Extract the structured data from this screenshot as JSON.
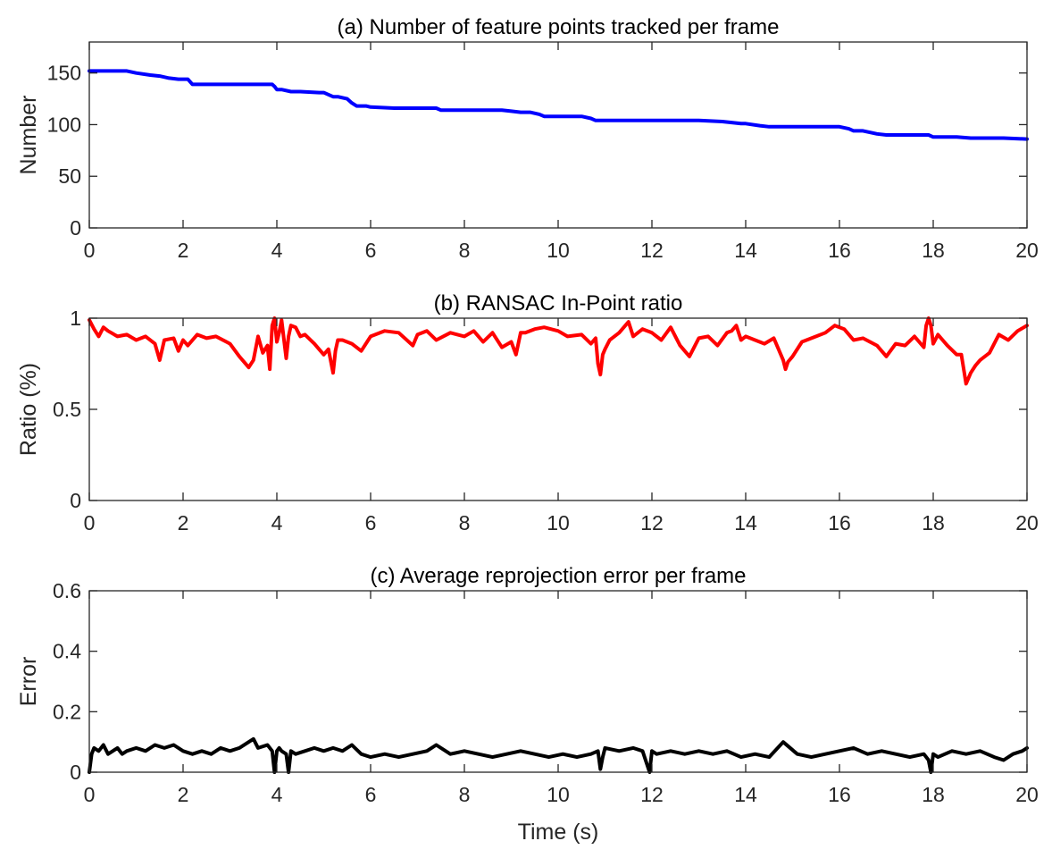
{
  "chart_data": [
    {
      "type": "line",
      "title": "(a) Number of feature points tracked per frame",
      "xlabel": "",
      "ylabel": "Number",
      "xlim": [
        0,
        20
      ],
      "ylim": [
        0,
        180
      ],
      "xticks": [
        0,
        2,
        4,
        6,
        8,
        10,
        12,
        14,
        16,
        18,
        20
      ],
      "xtick_labels": [
        "0",
        "2",
        "4",
        "6",
        "8",
        "10",
        "12",
        "14",
        "16",
        "18",
        "20"
      ],
      "yticks": [
        0,
        50,
        100,
        150
      ],
      "ytick_labels": [
        "0",
        "50",
        "100",
        "150"
      ],
      "grid": false,
      "color": "#0000ff",
      "series": [
        {
          "x": [
            0,
            0.8,
            1.0,
            1.3,
            1.5,
            1.7,
            1.9,
            2.1,
            2.2,
            2.5,
            3.0,
            3.5,
            3.9,
            3.95,
            4.0,
            4.1,
            4.3,
            4.5,
            4.9,
            5.0,
            5.2,
            5.3,
            5.5,
            5.6,
            5.7,
            5.9,
            6.0,
            6.5,
            7.0,
            7.4,
            7.5,
            8.0,
            8.5,
            8.8,
            9.0,
            9.2,
            9.4,
            9.6,
            9.7,
            10.0,
            10.5,
            10.7,
            10.8,
            11.0,
            11.5,
            12.0,
            12.5,
            13.0,
            13.5,
            13.9,
            14.0,
            14.3,
            14.5,
            15.0,
            15.5,
            16.0,
            16.2,
            16.3,
            16.5,
            16.7,
            16.8,
            17.0,
            17.5,
            17.9,
            18.0,
            18.5,
            18.8,
            19.0,
            19.5,
            20.0
          ],
          "values": [
            152,
            152,
            150,
            148,
            147,
            145,
            144,
            144,
            139,
            139,
            139,
            139,
            139,
            137,
            134,
            134,
            132,
            132,
            131,
            131,
            127,
            127,
            125,
            121,
            118,
            118,
            117,
            116,
            116,
            116,
            114,
            114,
            114,
            114,
            113,
            112,
            112,
            110,
            108,
            108,
            108,
            106,
            104,
            104,
            104,
            104,
            104,
            104,
            103,
            101,
            101,
            99,
            98,
            98,
            98,
            98,
            96,
            94,
            94,
            92,
            91,
            90,
            90,
            90,
            88,
            88,
            87,
            87,
            87,
            86
          ]
        }
      ]
    },
    {
      "type": "line",
      "title": "(b) RANSAC In-Point ratio",
      "xlabel": "",
      "ylabel": "Ratio (%)",
      "xlim": [
        0,
        20
      ],
      "ylim": [
        0,
        1
      ],
      "xticks": [
        0,
        2,
        4,
        6,
        8,
        10,
        12,
        14,
        16,
        18,
        20
      ],
      "xtick_labels": [
        "0",
        "2",
        "4",
        "6",
        "8",
        "10",
        "12",
        "14",
        "16",
        "18",
        "20"
      ],
      "yticks": [
        0,
        0.5,
        1
      ],
      "ytick_labels": [
        "0",
        "0.5",
        "1"
      ],
      "grid": false,
      "color": "#ff0000",
      "series": [
        {
          "x": [
            0,
            0.1,
            0.2,
            0.3,
            0.4,
            0.6,
            0.8,
            1.0,
            1.2,
            1.4,
            1.5,
            1.6,
            1.8,
            1.9,
            2.0,
            2.1,
            2.3,
            2.5,
            2.7,
            3.0,
            3.2,
            3.4,
            3.5,
            3.6,
            3.7,
            3.8,
            3.85,
            3.9,
            3.95,
            4.0,
            4.05,
            4.1,
            4.2,
            4.25,
            4.3,
            4.4,
            4.5,
            4.6,
            4.8,
            5.0,
            5.1,
            5.2,
            5.25,
            5.3,
            5.4,
            5.6,
            5.8,
            6.0,
            6.3,
            6.6,
            6.9,
            7.0,
            7.2,
            7.4,
            7.7,
            8.0,
            8.2,
            8.4,
            8.6,
            8.8,
            9.0,
            9.1,
            9.2,
            9.3,
            9.5,
            9.7,
            10.0,
            10.2,
            10.5,
            10.7,
            10.8,
            10.85,
            10.9,
            10.95,
            11.0,
            11.1,
            11.3,
            11.5,
            11.6,
            11.8,
            12.0,
            12.2,
            12.4,
            12.6,
            12.8,
            13.0,
            13.2,
            13.4,
            13.6,
            13.7,
            13.8,
            13.9,
            14.0,
            14.2,
            14.4,
            14.6,
            14.8,
            14.85,
            14.9,
            15.0,
            15.2,
            15.5,
            15.7,
            15.9,
            16.1,
            16.3,
            16.5,
            16.8,
            17.0,
            17.2,
            17.4,
            17.6,
            17.8,
            17.85,
            17.9,
            17.95,
            18.0,
            18.1,
            18.3,
            18.5,
            18.6,
            18.7,
            18.8,
            18.9,
            19.0,
            19.2,
            19.4,
            19.6,
            19.8,
            20.0
          ],
          "values": [
            0.99,
            0.94,
            0.9,
            0.95,
            0.93,
            0.9,
            0.91,
            0.88,
            0.9,
            0.86,
            0.77,
            0.88,
            0.89,
            0.82,
            0.88,
            0.85,
            0.91,
            0.89,
            0.9,
            0.86,
            0.79,
            0.73,
            0.77,
            0.9,
            0.81,
            0.85,
            0.72,
            0.96,
            1.0,
            0.87,
            0.92,
            0.99,
            0.78,
            0.9,
            0.96,
            0.95,
            0.9,
            0.91,
            0.86,
            0.8,
            0.83,
            0.7,
            0.82,
            0.88,
            0.88,
            0.86,
            0.82,
            0.9,
            0.93,
            0.92,
            0.85,
            0.91,
            0.93,
            0.88,
            0.92,
            0.9,
            0.93,
            0.87,
            0.92,
            0.84,
            0.87,
            0.8,
            0.92,
            0.92,
            0.94,
            0.95,
            0.93,
            0.9,
            0.91,
            0.86,
            0.89,
            0.75,
            0.69,
            0.8,
            0.83,
            0.88,
            0.92,
            0.98,
            0.9,
            0.94,
            0.92,
            0.88,
            0.95,
            0.85,
            0.79,
            0.89,
            0.9,
            0.85,
            0.92,
            0.93,
            0.96,
            0.88,
            0.9,
            0.88,
            0.86,
            0.89,
            0.77,
            0.72,
            0.76,
            0.79,
            0.87,
            0.9,
            0.92,
            0.96,
            0.94,
            0.88,
            0.89,
            0.85,
            0.79,
            0.86,
            0.85,
            0.9,
            0.84,
            0.96,
            1.0,
            0.96,
            0.86,
            0.91,
            0.85,
            0.8,
            0.8,
            0.64,
            0.7,
            0.74,
            0.77,
            0.81,
            0.91,
            0.88,
            0.93,
            0.96
          ]
        }
      ]
    },
    {
      "type": "line",
      "title": "(c) Average reprojection error per frame",
      "xlabel": "Time (s)",
      "ylabel": "Error",
      "xlim": [
        0,
        20
      ],
      "ylim": [
        0,
        0.6
      ],
      "xticks": [
        0,
        2,
        4,
        6,
        8,
        10,
        12,
        14,
        16,
        18,
        20
      ],
      "xtick_labels": [
        "0",
        "2",
        "4",
        "6",
        "8",
        "10",
        "12",
        "14",
        "16",
        "18",
        "20"
      ],
      "yticks": [
        0,
        0.2,
        0.4,
        0.6
      ],
      "ytick_labels": [
        "0",
        "0.2",
        "0.4",
        "0.6"
      ],
      "grid": false,
      "color": "#000000",
      "series": [
        {
          "x": [
            0,
            0.05,
            0.1,
            0.2,
            0.3,
            0.4,
            0.5,
            0.6,
            0.7,
            0.8,
            1.0,
            1.2,
            1.4,
            1.6,
            1.8,
            2.0,
            2.2,
            2.4,
            2.6,
            2.8,
            3.0,
            3.2,
            3.4,
            3.5,
            3.6,
            3.8,
            3.9,
            3.95,
            4.0,
            4.05,
            4.1,
            4.2,
            4.25,
            4.3,
            4.4,
            4.6,
            4.8,
            5.0,
            5.2,
            5.4,
            5.6,
            5.8,
            6.0,
            6.3,
            6.6,
            6.9,
            7.2,
            7.4,
            7.7,
            8.0,
            8.3,
            8.6,
            8.9,
            9.2,
            9.5,
            9.8,
            10.1,
            10.4,
            10.7,
            10.85,
            10.9,
            10.95,
            11.0,
            11.3,
            11.6,
            11.8,
            11.95,
            12.0,
            12.1,
            12.4,
            12.7,
            13.0,
            13.3,
            13.6,
            13.9,
            14.2,
            14.5,
            14.8,
            15.1,
            15.4,
            15.7,
            16.0,
            16.3,
            16.6,
            16.9,
            17.2,
            17.5,
            17.8,
            17.9,
            17.95,
            18.0,
            18.1,
            18.4,
            18.7,
            19.0,
            19.3,
            19.5,
            19.7,
            19.9,
            20.0
          ],
          "values": [
            0.0,
            0.06,
            0.08,
            0.07,
            0.09,
            0.06,
            0.07,
            0.08,
            0.06,
            0.07,
            0.08,
            0.07,
            0.09,
            0.08,
            0.09,
            0.07,
            0.06,
            0.07,
            0.06,
            0.08,
            0.07,
            0.08,
            0.1,
            0.11,
            0.08,
            0.09,
            0.07,
            0.0,
            0.07,
            0.08,
            0.07,
            0.06,
            0.0,
            0.07,
            0.06,
            0.07,
            0.08,
            0.07,
            0.08,
            0.07,
            0.09,
            0.06,
            0.05,
            0.06,
            0.05,
            0.06,
            0.07,
            0.09,
            0.06,
            0.07,
            0.06,
            0.05,
            0.06,
            0.07,
            0.06,
            0.05,
            0.06,
            0.05,
            0.06,
            0.07,
            0.01,
            0.05,
            0.08,
            0.07,
            0.08,
            0.07,
            0.0,
            0.07,
            0.06,
            0.07,
            0.06,
            0.07,
            0.06,
            0.07,
            0.05,
            0.06,
            0.05,
            0.1,
            0.06,
            0.05,
            0.06,
            0.07,
            0.08,
            0.06,
            0.07,
            0.06,
            0.05,
            0.06,
            0.04,
            0.0,
            0.06,
            0.05,
            0.07,
            0.06,
            0.07,
            0.05,
            0.04,
            0.06,
            0.07,
            0.08
          ]
        }
      ]
    }
  ]
}
